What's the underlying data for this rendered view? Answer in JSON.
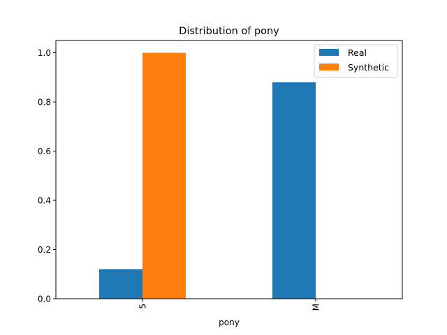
{
  "chart_data": {
    "type": "bar",
    "title": "Distribution of pony",
    "xlabel": "pony",
    "ylabel": "",
    "categories": [
      "5",
      "M"
    ],
    "series": [
      {
        "name": "Real",
        "color": "#1f77b4",
        "values": [
          0.12,
          0.88
        ]
      },
      {
        "name": "Synthetic",
        "color": "#ff7f0e",
        "values": [
          1.0,
          0.0
        ]
      }
    ],
    "ylim": [
      0,
      1.05
    ],
    "yticks": [
      "0.0",
      "0.2",
      "0.4",
      "0.6",
      "0.8",
      "1.0"
    ],
    "grid": false,
    "legend_position": "top-right",
    "xtick_rotation": "vertical"
  }
}
